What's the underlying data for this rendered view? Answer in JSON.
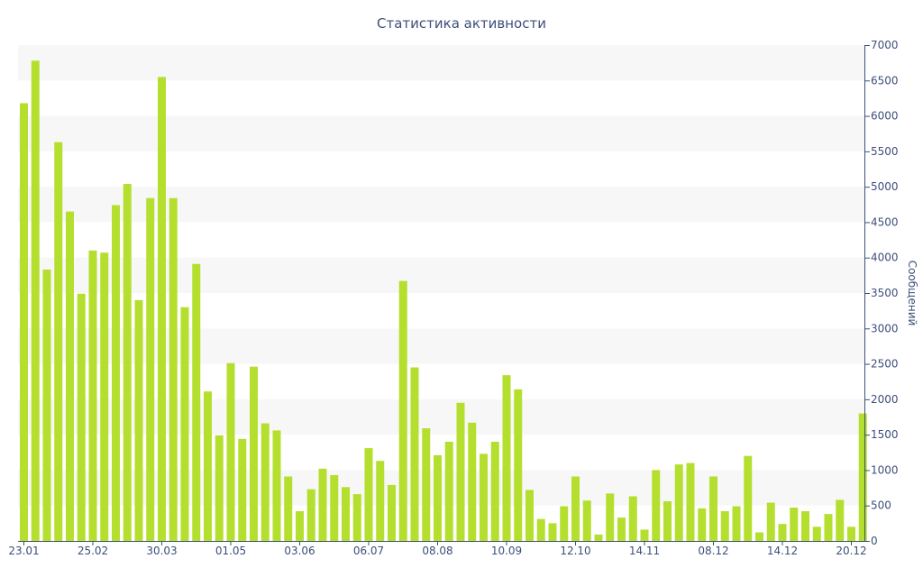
{
  "colors": {
    "bar": "#b5df2e",
    "band": "#f7f7f7",
    "text": "#3d4f7a",
    "axis": "#3d4f7a"
  },
  "chart_data": {
    "type": "bar",
    "title": "Статистика активности",
    "xlabel": "",
    "ylabel": "Сообщений",
    "ylim": [
      0,
      7000
    ],
    "y_ticks": [
      0,
      500,
      1000,
      1500,
      2000,
      2500,
      3000,
      3500,
      4000,
      4500,
      5000,
      5500,
      6000,
      6500,
      7000
    ],
    "y_axis_side": "right",
    "grid": "alternating horizontal bands",
    "legend": "none",
    "x_tick_labels": [
      {
        "label": "23.01",
        "index": 0
      },
      {
        "label": "25.02",
        "index": 6
      },
      {
        "label": "30.03",
        "index": 12
      },
      {
        "label": "01.05",
        "index": 18
      },
      {
        "label": "03.06",
        "index": 24
      },
      {
        "label": "06.07",
        "index": 30
      },
      {
        "label": "08.08",
        "index": 36
      },
      {
        "label": "10.09",
        "index": 42
      },
      {
        "label": "12.10",
        "index": 48
      },
      {
        "label": "14.11",
        "index": 54
      },
      {
        "label": "08.12",
        "index": 60
      },
      {
        "label": "14.12",
        "index": 66
      },
      {
        "label": "20.12",
        "index": 72
      }
    ],
    "values": [
      6180,
      6780,
      3830,
      5630,
      4650,
      3490,
      4100,
      4070,
      4740,
      5040,
      3400,
      4840,
      6550,
      4840,
      3300,
      3910,
      2110,
      1490,
      2510,
      1440,
      2460,
      1660,
      1560,
      910,
      420,
      730,
      1020,
      930,
      760,
      660,
      1310,
      1130,
      790,
      3670,
      2450,
      1590,
      1210,
      1400,
      1950,
      1670,
      1230,
      1400,
      2340,
      2140,
      720,
      310,
      250,
      490,
      910,
      570,
      90,
      670,
      330,
      630,
      160,
      1000,
      560,
      1080,
      1100,
      460,
      910,
      420,
      490,
      1200,
      120,
      540,
      240,
      470,
      420,
      200,
      380,
      580,
      200,
      1800
    ]
  }
}
